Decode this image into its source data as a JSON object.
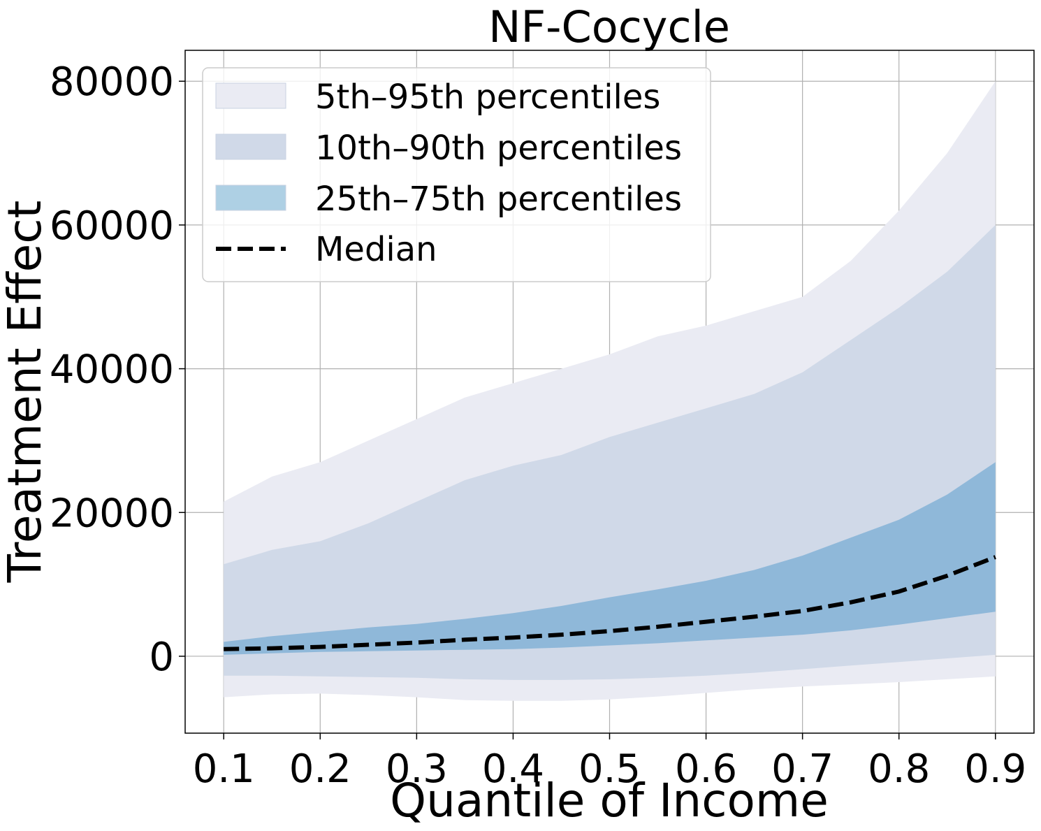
{
  "chart_data": {
    "type": "area",
    "title": "NF-Cocycle",
    "xlabel": "Quantile of Income",
    "ylabel": "Treatment Effect",
    "xlim": [
      0.06,
      0.94
    ],
    "ylim": [
      -10700,
      84300
    ],
    "xticks": [
      0.1,
      0.2,
      0.3,
      0.4,
      0.5,
      0.6,
      0.7,
      0.8,
      0.9
    ],
    "xtick_labels": [
      "0.1",
      "0.2",
      "0.3",
      "0.4",
      "0.5",
      "0.6",
      "0.7",
      "0.8",
      "0.9"
    ],
    "yticks": [
      0,
      20000,
      40000,
      60000,
      80000
    ],
    "ytick_labels": [
      "0",
      "20000",
      "40000",
      "60000",
      "80000"
    ],
    "grid": true,
    "legend_position": "top-left",
    "x": [
      0.1,
      0.15,
      0.2,
      0.25,
      0.3,
      0.35,
      0.4,
      0.45,
      0.5,
      0.55,
      0.6,
      0.65,
      0.7,
      0.75,
      0.8,
      0.85,
      0.9
    ],
    "bands": [
      {
        "name": "5th–95th percentiles",
        "color": "#eaebf3",
        "lower": [
          -5700,
          -5300,
          -5200,
          -5400,
          -5700,
          -6100,
          -6200,
          -6200,
          -6000,
          -5600,
          -5100,
          -4600,
          -4200,
          -3900,
          -3600,
          -3200,
          -2800
        ],
        "upper": [
          21500,
          25000,
          27000,
          30000,
          33000,
          36000,
          38000,
          40000,
          42000,
          44500,
          46000,
          48000,
          50000,
          55000,
          62000,
          70000,
          80000
        ]
      },
      {
        "name": "10th–90th percentiles",
        "color": "#d0d9e8",
        "lower": [
          -2700,
          -2700,
          -2800,
          -2900,
          -3000,
          -3200,
          -3300,
          -3300,
          -3200,
          -3000,
          -2700,
          -2300,
          -1800,
          -1300,
          -800,
          -300,
          200
        ],
        "upper": [
          12800,
          14800,
          16000,
          18500,
          21500,
          24500,
          26500,
          28000,
          30500,
          32500,
          34500,
          36500,
          39500,
          44000,
          48500,
          53500,
          60000
        ]
      },
      {
        "name": "25th–75th percentiles",
        "color": "#8fb8d9",
        "lower": [
          200,
          400,
          600,
          700,
          800,
          900,
          1000,
          1200,
          1500,
          1800,
          2200,
          2600,
          3000,
          3600,
          4400,
          5300,
          6200
        ],
        "upper": [
          2000,
          2800,
          3400,
          4000,
          4500,
          5200,
          6000,
          7000,
          8200,
          9300,
          10500,
          12000,
          14000,
          16500,
          19000,
          22500,
          27000
        ]
      }
    ],
    "series": [
      {
        "name": "Median",
        "color": "#000000",
        "values": [
          1000,
          1100,
          1300,
          1600,
          1900,
          2300,
          2600,
          3000,
          3500,
          4100,
          4800,
          5500,
          6300,
          7500,
          9000,
          11200,
          13800
        ]
      }
    ],
    "legend_swatch_colors": [
      "#eaebf3",
      "#d0d9e8",
      "#aed0e4"
    ]
  }
}
